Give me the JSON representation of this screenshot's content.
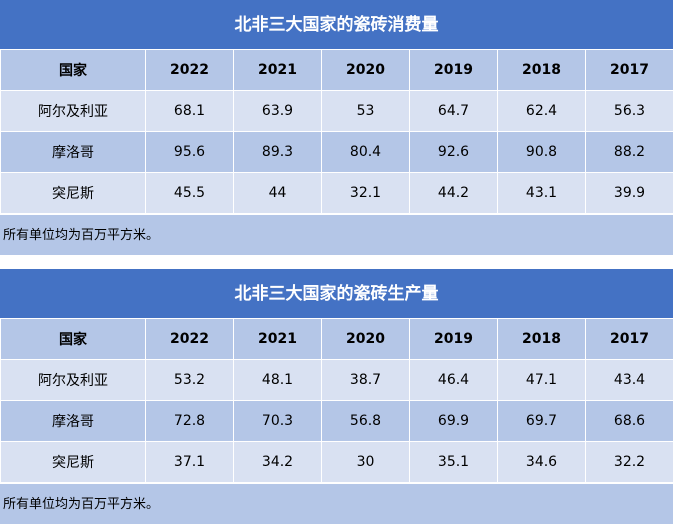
{
  "chart_data": [
    {
      "type": "table",
      "title": "北非三大国家的瓷砖消费量",
      "header": [
        "国家",
        "2022",
        "2021",
        "2020",
        "2019",
        "2018",
        "2017"
      ],
      "rows": [
        {
          "country": "阿尔及利亚",
          "values": [
            "68.1",
            "63.9",
            "53",
            "64.7",
            "62.4",
            "56.3"
          ]
        },
        {
          "country": "摩洛哥",
          "values": [
            "95.6",
            "89.3",
            "80.4",
            "92.6",
            "90.8",
            "88.2"
          ]
        },
        {
          "country": "突尼斯",
          "values": [
            "45.5",
            "44",
            "32.1",
            "44.2",
            "43.1",
            "39.9"
          ]
        }
      ],
      "note": "所有单位均为百万平方米。"
    },
    {
      "type": "table",
      "title": "北非三大国家的瓷砖生产量",
      "header": [
        "国家",
        "2022",
        "2021",
        "2020",
        "2019",
        "2018",
        "2017"
      ],
      "rows": [
        {
          "country": "阿尔及利亚",
          "values": [
            "53.2",
            "48.1",
            "38.7",
            "46.4",
            "47.1",
            "43.4"
          ]
        },
        {
          "country": "摩洛哥",
          "values": [
            "72.8",
            "70.3",
            "56.8",
            "69.9",
            "69.7",
            "68.6"
          ]
        },
        {
          "country": "突尼斯",
          "values": [
            "37.1",
            "34.2",
            "30",
            "35.1",
            "34.6",
            "32.2"
          ]
        }
      ],
      "note": "所有单位均为百万平方米。"
    }
  ],
  "colors": {
    "title_bg": "#4472c4",
    "header_bg": "#b4c6e7",
    "row_light": "#d9e1f2",
    "row_dark": "#b4c6e7",
    "title_text": "#ffffff"
  }
}
